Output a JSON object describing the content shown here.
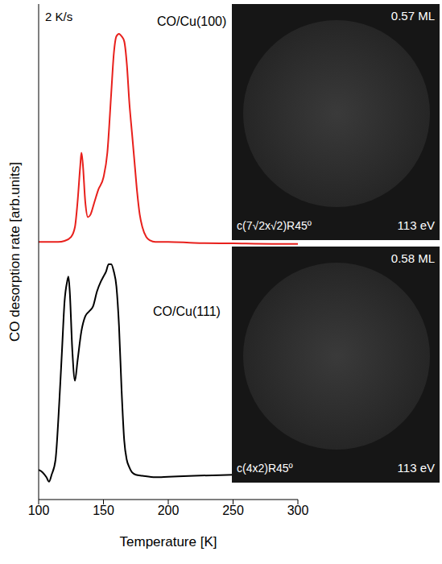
{
  "chart_data": {
    "type": "line",
    "x_label": "Temperature [K]",
    "y_label": "CO desorption rate [arb.units]",
    "xlim": [
      100,
      300
    ],
    "xticks": [
      100,
      150,
      200,
      250,
      300
    ],
    "ylim": [
      0,
      100
    ],
    "yticks": [],
    "tick_labels": "x",
    "grid": false,
    "annotations": [
      "2 K/s"
    ],
    "series": [
      {
        "name": "CO/Cu(100)",
        "color": "#e8201c",
        "x": [
          100,
          105,
          110,
          115,
          120,
          125,
          128,
          130,
          132,
          133,
          134,
          136,
          138,
          140,
          143,
          146,
          150,
          153,
          156,
          158,
          160,
          162,
          164,
          166,
          168,
          170,
          172,
          174,
          176,
          178,
          180,
          183,
          186,
          190,
          200,
          220,
          250,
          280,
          300
        ],
        "values": [
          52,
          52,
          52,
          52,
          52.2,
          53,
          55,
          60,
          67,
          70,
          68,
          60,
          57,
          57.5,
          60,
          62.5,
          65,
          70,
          82,
          90,
          93.5,
          94,
          93.5,
          92.5,
          88,
          80,
          74,
          68,
          62,
          57.5,
          55,
          53,
          52.3,
          52,
          52,
          51.8,
          51.7,
          51.6,
          51.6
        ]
      },
      {
        "name": "CO/Cu(111)",
        "color": "#000000",
        "x": [
          100,
          103,
          106,
          108,
          110,
          113,
          116,
          118,
          120,
          122,
          123,
          124,
          126,
          128,
          130,
          133,
          136,
          139,
          142,
          145,
          148,
          150,
          152,
          154,
          156,
          158,
          160,
          162,
          164,
          166,
          168,
          170,
          172,
          175,
          180,
          190,
          200,
          220,
          250,
          280,
          300
        ],
        "values": [
          6,
          5.5,
          4.5,
          3.6,
          5,
          8,
          20,
          30,
          40,
          44,
          45,
          42,
          30,
          24,
          28,
          34,
          37,
          38,
          39,
          42,
          44,
          45,
          46,
          47.5,
          47.5,
          46,
          43,
          35,
          22,
          12,
          8,
          6.5,
          5.5,
          5,
          4.8,
          4.5,
          4.6,
          4.8,
          5,
          5.2,
          5.3
        ]
      }
    ],
    "insets": [
      {
        "coverage": "0.57 ML",
        "structure": "c(7√2x√2)R45º",
        "energy": "113 eV"
      },
      {
        "coverage": "0.58 ML",
        "structure": "c(4x2)R45º",
        "energy": "113 eV"
      }
    ]
  }
}
